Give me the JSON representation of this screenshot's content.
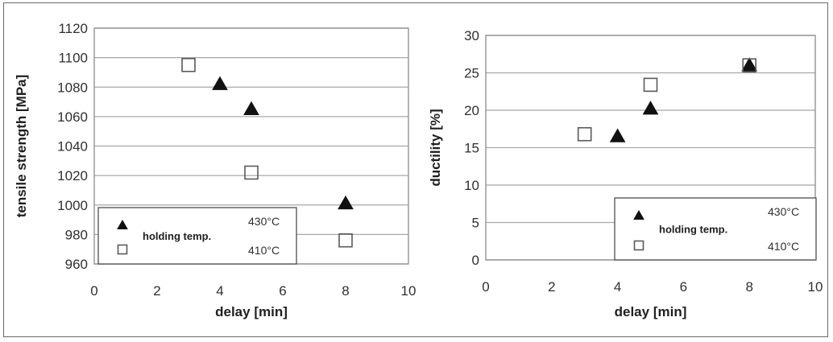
{
  "chart_data": [
    {
      "type": "scatter",
      "xlabel": "delay [min]",
      "ylabel": "tensile strength [MPa]",
      "xlim": [
        0,
        10
      ],
      "ylim": [
        960,
        1120
      ],
      "xticks": [
        "0",
        "2",
        "4",
        "6",
        "8",
        "10"
      ],
      "yticks": [
        "960",
        "980",
        "1000",
        "1020",
        "1040",
        "1060",
        "1080",
        "1100",
        "1120"
      ],
      "grid": "horizontal",
      "legend": {
        "position": "bottom-left",
        "title": "holding temp.",
        "entries": [
          "430°C",
          "410°C"
        ]
      },
      "series": [
        {
          "name": "430°C",
          "marker": "filled-triangle",
          "x": [
            4,
            5,
            8
          ],
          "y": [
            1082,
            1065,
            1001
          ]
        },
        {
          "name": "410°C",
          "marker": "open-square",
          "x": [
            3,
            5,
            8
          ],
          "y": [
            1095,
            1022,
            976
          ]
        }
      ]
    },
    {
      "type": "scatter",
      "xlabel": "delay [min]",
      "ylabel": "ductility [%]",
      "xlim": [
        0,
        10
      ],
      "ylim": [
        0,
        30
      ],
      "xticks": [
        "0",
        "2",
        "4",
        "6",
        "8",
        "10"
      ],
      "yticks": [
        "0",
        "5",
        "10",
        "15",
        "20",
        "25",
        "30"
      ],
      "grid": "horizontal",
      "legend": {
        "position": "bottom-right",
        "title": "holding temp.",
        "entries": [
          "430°C",
          "410°C"
        ]
      },
      "series": [
        {
          "name": "430°C",
          "marker": "filled-triangle",
          "x": [
            4,
            5,
            8
          ],
          "y": [
            16.5,
            20.2,
            26
          ]
        },
        {
          "name": "410°C",
          "marker": "open-square",
          "x": [
            3,
            5,
            8
          ],
          "y": [
            16.8,
            23.4,
            26
          ]
        }
      ]
    }
  ]
}
